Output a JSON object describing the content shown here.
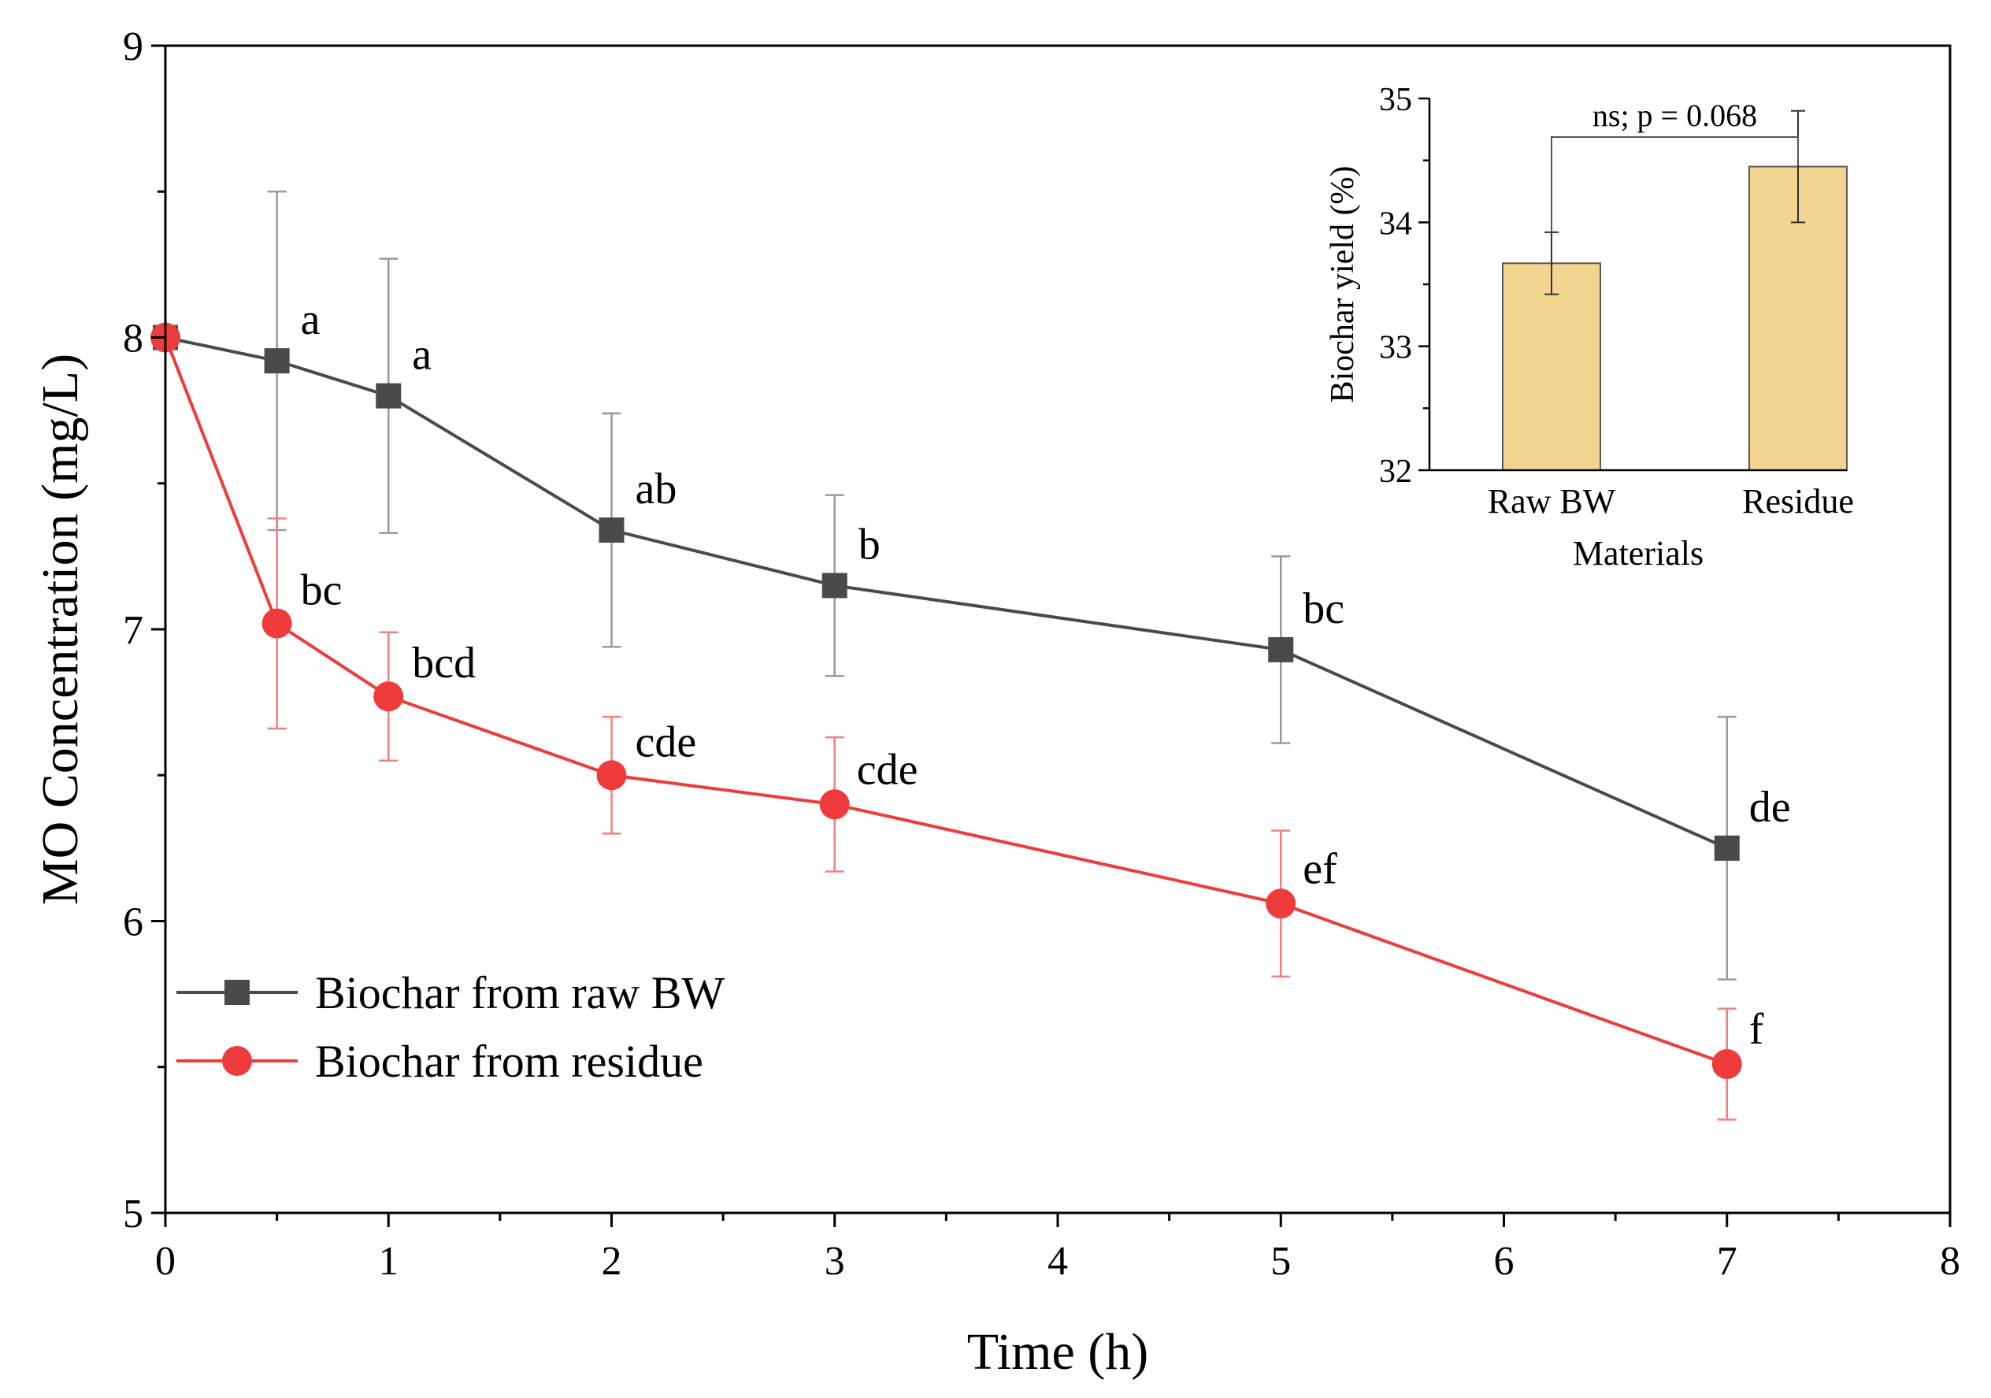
{
  "colors": {
    "raw_series": "#4a4a4a",
    "residue_series": "#ee3b3b",
    "raw_error": "#9a9a9a",
    "residue_error": "#f08080",
    "bar_fill": "#f2d38f",
    "bar_stroke": "#5a5a5a",
    "axis": "#000000"
  },
  "chart_data": [
    {
      "type": "line",
      "title": "",
      "xlabel": "Time (h)",
      "ylabel": "MO Concentration (mg/L)",
      "xlim": [
        0,
        8
      ],
      "ylim": [
        5,
        9
      ],
      "xticks": [
        "0",
        "1",
        "2",
        "3",
        "4",
        "5",
        "6",
        "7",
        "8"
      ],
      "yticks": [
        "5",
        "6",
        "7",
        "8",
        "9"
      ],
      "legend_position": "bottom-left",
      "series": [
        {
          "name": "Biochar from raw BW",
          "marker": "square",
          "x": [
            0,
            0.5,
            1,
            2,
            3,
            5,
            7
          ],
          "y": [
            8.0,
            7.92,
            7.8,
            7.34,
            7.15,
            6.93,
            6.25
          ],
          "err": [
            0,
            0.58,
            0.47,
            0.4,
            0.31,
            0.32,
            0.45
          ],
          "labels": [
            "",
            "a",
            "a",
            "ab",
            "b",
            "bc",
            "de"
          ]
        },
        {
          "name": "Biochar from residue",
          "marker": "circle",
          "x": [
            0,
            0.5,
            1,
            2,
            3,
            5,
            7
          ],
          "y": [
            8.0,
            7.02,
            6.77,
            6.5,
            6.4,
            6.06,
            5.51
          ],
          "err": [
            0,
            0.36,
            0.22,
            0.2,
            0.23,
            0.25,
            0.19
          ],
          "labels": [
            "",
            "bc",
            "bcd",
            "cde",
            "cde",
            "ef",
            "f"
          ]
        }
      ]
    },
    {
      "type": "bar",
      "title": "",
      "xlabel": "Materials",
      "ylabel": "Biochar yield (%)",
      "ylim": [
        32,
        35
      ],
      "yticks": [
        "32",
        "33",
        "34",
        "35"
      ],
      "categories": [
        "Raw BW",
        "Residue"
      ],
      "values": [
        33.67,
        34.45
      ],
      "err": [
        0.25,
        0.45
      ],
      "annotation": "ns; p = 0.068"
    }
  ]
}
